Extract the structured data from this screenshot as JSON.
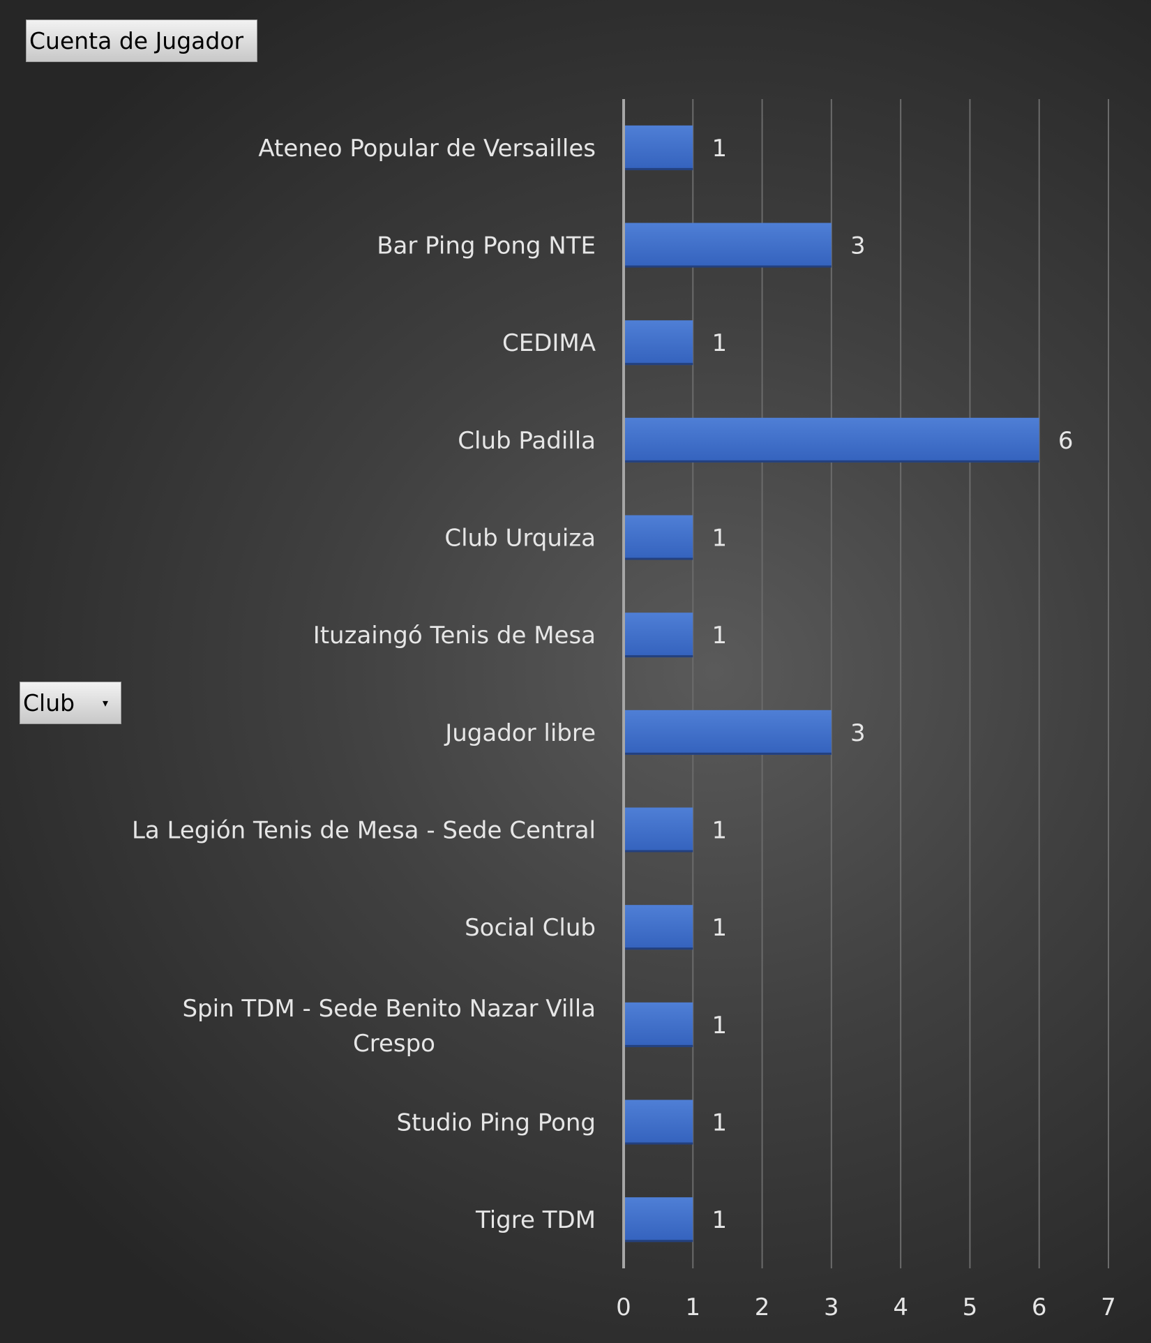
{
  "pivot": {
    "values_field_label": "Cuenta de Jugador",
    "axis_field_label": "Club",
    "dropdown_icon": "dropdown-arrow-icon"
  },
  "chart_data": {
    "type": "bar",
    "orientation": "horizontal",
    "categories": [
      "Ateneo Popular de Versailles",
      "Bar Ping Pong NTE",
      "CEDIMA",
      "Club Padilla",
      "Club Urquiza",
      "Ituzaingó Tenis de Mesa",
      "Jugador libre",
      "La Legión Tenis de Mesa - Sede Central",
      "Social Club",
      "Spin TDM - Sede Benito Nazar Villa Crespo",
      "Studio Ping Pong",
      "Tigre TDM"
    ],
    "values": [
      1,
      3,
      1,
      6,
      1,
      1,
      3,
      1,
      1,
      1,
      1,
      1
    ],
    "xlim": [
      0,
      7
    ],
    "xticks": [
      0,
      1,
      2,
      3,
      4,
      5,
      6,
      7
    ],
    "grid": true,
    "data_labels": true,
    "bar_color": "#4472c4"
  }
}
